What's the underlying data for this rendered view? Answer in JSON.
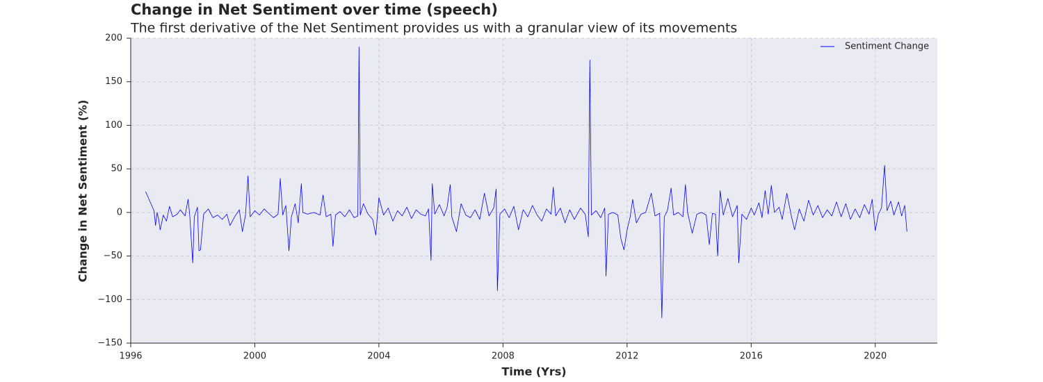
{
  "chart_data": {
    "type": "line",
    "title": "Change in Net Sentiment over time (speech)",
    "subtitle": "The first derivative of the Net Sentiment provides us with a granular view of its movements",
    "x_label": "Time (Yrs)",
    "y_label": "Change in Net Sentiment (%)",
    "x": [
      1996.48,
      1996.75,
      1996.8,
      1996.85,
      1996.9,
      1996.95,
      1997.05,
      1997.15,
      1997.25,
      1997.35,
      1997.5,
      1997.6,
      1997.75,
      1997.85,
      1997.9,
      1998.0,
      1998.05,
      1998.15,
      1998.2,
      1998.25,
      1998.35,
      1998.5,
      1998.65,
      1998.8,
      1998.95,
      1999.1,
      1999.2,
      1999.35,
      1999.5,
      1999.6,
      1999.7,
      1999.78,
      1999.85,
      2000.0,
      2000.15,
      2000.3,
      2000.45,
      2000.6,
      2000.75,
      2000.82,
      2000.9,
      2001.0,
      2001.1,
      2001.18,
      2001.3,
      2001.4,
      2001.5,
      2001.55,
      2001.7,
      2001.9,
      2002.1,
      2002.2,
      2002.3,
      2002.45,
      2002.52,
      2002.6,
      2002.75,
      2002.9,
      2003.05,
      2003.2,
      2003.32,
      2003.36,
      2003.4,
      2003.5,
      2003.65,
      2003.8,
      2003.9,
      2004.0,
      2004.15,
      2004.3,
      2004.45,
      2004.6,
      2004.75,
      2004.9,
      2005.05,
      2005.2,
      2005.35,
      2005.5,
      2005.6,
      2005.68,
      2005.72,
      2005.8,
      2005.95,
      2006.1,
      2006.2,
      2006.3,
      2006.35,
      2006.5,
      2006.65,
      2006.8,
      2006.95,
      2007.1,
      2007.25,
      2007.4,
      2007.55,
      2007.7,
      2007.78,
      2007.82,
      2007.9,
      2008.05,
      2008.2,
      2008.35,
      2008.5,
      2008.65,
      2008.8,
      2008.95,
      2009.1,
      2009.25,
      2009.4,
      2009.55,
      2009.62,
      2009.7,
      2009.85,
      2010.0,
      2010.15,
      2010.3,
      2010.5,
      2010.65,
      2010.75,
      2010.8,
      2010.85,
      2011.0,
      2011.15,
      2011.28,
      2011.32,
      2011.4,
      2011.55,
      2011.7,
      2011.8,
      2011.9,
      2012.0,
      2012.1,
      2012.18,
      2012.3,
      2012.45,
      2012.6,
      2012.78,
      2012.9,
      2013.05,
      2013.12,
      2013.2,
      2013.3,
      2013.42,
      2013.5,
      2013.65,
      2013.8,
      2013.88,
      2013.95,
      2014.1,
      2014.25,
      2014.4,
      2014.55,
      2014.65,
      2014.75,
      2014.85,
      2014.92,
      2015.0,
      2015.1,
      2015.25,
      2015.4,
      2015.55,
      2015.6,
      2015.7,
      2015.85,
      2016.0,
      2016.1,
      2016.25,
      2016.35,
      2016.45,
      2016.55,
      2016.65,
      2016.75,
      2016.9,
      2017.0,
      2017.15,
      2017.3,
      2017.4,
      2017.55,
      2017.7,
      2017.85,
      2018.0,
      2018.15,
      2018.3,
      2018.45,
      2018.6,
      2018.75,
      2018.9,
      2019.05,
      2019.2,
      2019.35,
      2019.5,
      2019.65,
      2019.8,
      2019.9,
      2020.0,
      2020.1,
      2020.2,
      2020.3,
      2020.38,
      2020.5,
      2020.6,
      2020.75,
      2020.85,
      2020.95,
      2021.02
    ],
    "series": [
      {
        "name": "Sentiment Change",
        "color": "#0000ff",
        "values": [
          24,
          2,
          -15,
          0,
          -8,
          -20,
          -3,
          -10,
          7,
          -5,
          -2,
          3,
          -4,
          15,
          -2,
          -58,
          -5,
          6,
          -44,
          -43,
          -2,
          4,
          -6,
          -3,
          -8,
          -2,
          -15,
          -5,
          3,
          -22,
          -3,
          42,
          -5,
          2,
          -3,
          4,
          -1,
          -6,
          -2,
          39,
          -3,
          8,
          -44,
          -5,
          10,
          -12,
          33,
          0,
          -2,
          0,
          -3,
          20,
          -5,
          -2,
          -39,
          -3,
          1,
          -5,
          3,
          -6,
          -4,
          190,
          -3,
          10,
          -2,
          -8,
          -26,
          17,
          -3,
          5,
          -10,
          2,
          -4,
          6,
          -7,
          3,
          -2,
          -4,
          4,
          -55,
          33,
          -2,
          9,
          -4,
          6,
          32,
          -5,
          -22,
          10,
          -3,
          -6,
          3,
          -8,
          22,
          -4,
          5,
          27,
          -90,
          -2,
          4,
          -6,
          7,
          -20,
          3,
          -5,
          8,
          -3,
          -10,
          4,
          -2,
          29,
          -4,
          5,
          -12,
          3,
          -8,
          5,
          -2,
          -28,
          175,
          -3,
          2,
          -6,
          5,
          -73,
          -2,
          0,
          -3,
          -30,
          -43,
          -20,
          -5,
          15,
          -12,
          -2,
          0,
          22,
          -4,
          -1,
          -121,
          -5,
          2,
          28,
          -3,
          0,
          -5,
          32,
          0,
          -24,
          -2,
          0,
          -3,
          -37,
          -1,
          -2,
          -50,
          25,
          -3,
          16,
          -5,
          8,
          -58,
          -2,
          -8,
          5,
          -3,
          11,
          -6,
          25,
          -2,
          31,
          0,
          6,
          -8,
          22,
          -5,
          -20,
          4,
          -10,
          14,
          -3,
          8,
          -6,
          3,
          -4,
          12,
          -5,
          10,
          -8,
          4,
          -6,
          9,
          -2,
          15,
          -21,
          -2,
          5,
          54,
          2,
          13,
          -3,
          12,
          -4,
          8,
          -22
        ]
      }
    ],
    "xlim": [
      1996,
      2022
    ],
    "xticks": [
      1996,
      2000,
      2004,
      2008,
      2012,
      2016,
      2020
    ],
    "ylim": [
      -150,
      200
    ],
    "yticks": [
      {
        "value": -150,
        "label": "−150"
      },
      {
        "value": -100,
        "label": "−100"
      },
      {
        "value": -50,
        "label": "−50"
      },
      0,
      50,
      100,
      150,
      200
    ],
    "grid": true,
    "legend": "upper right"
  }
}
